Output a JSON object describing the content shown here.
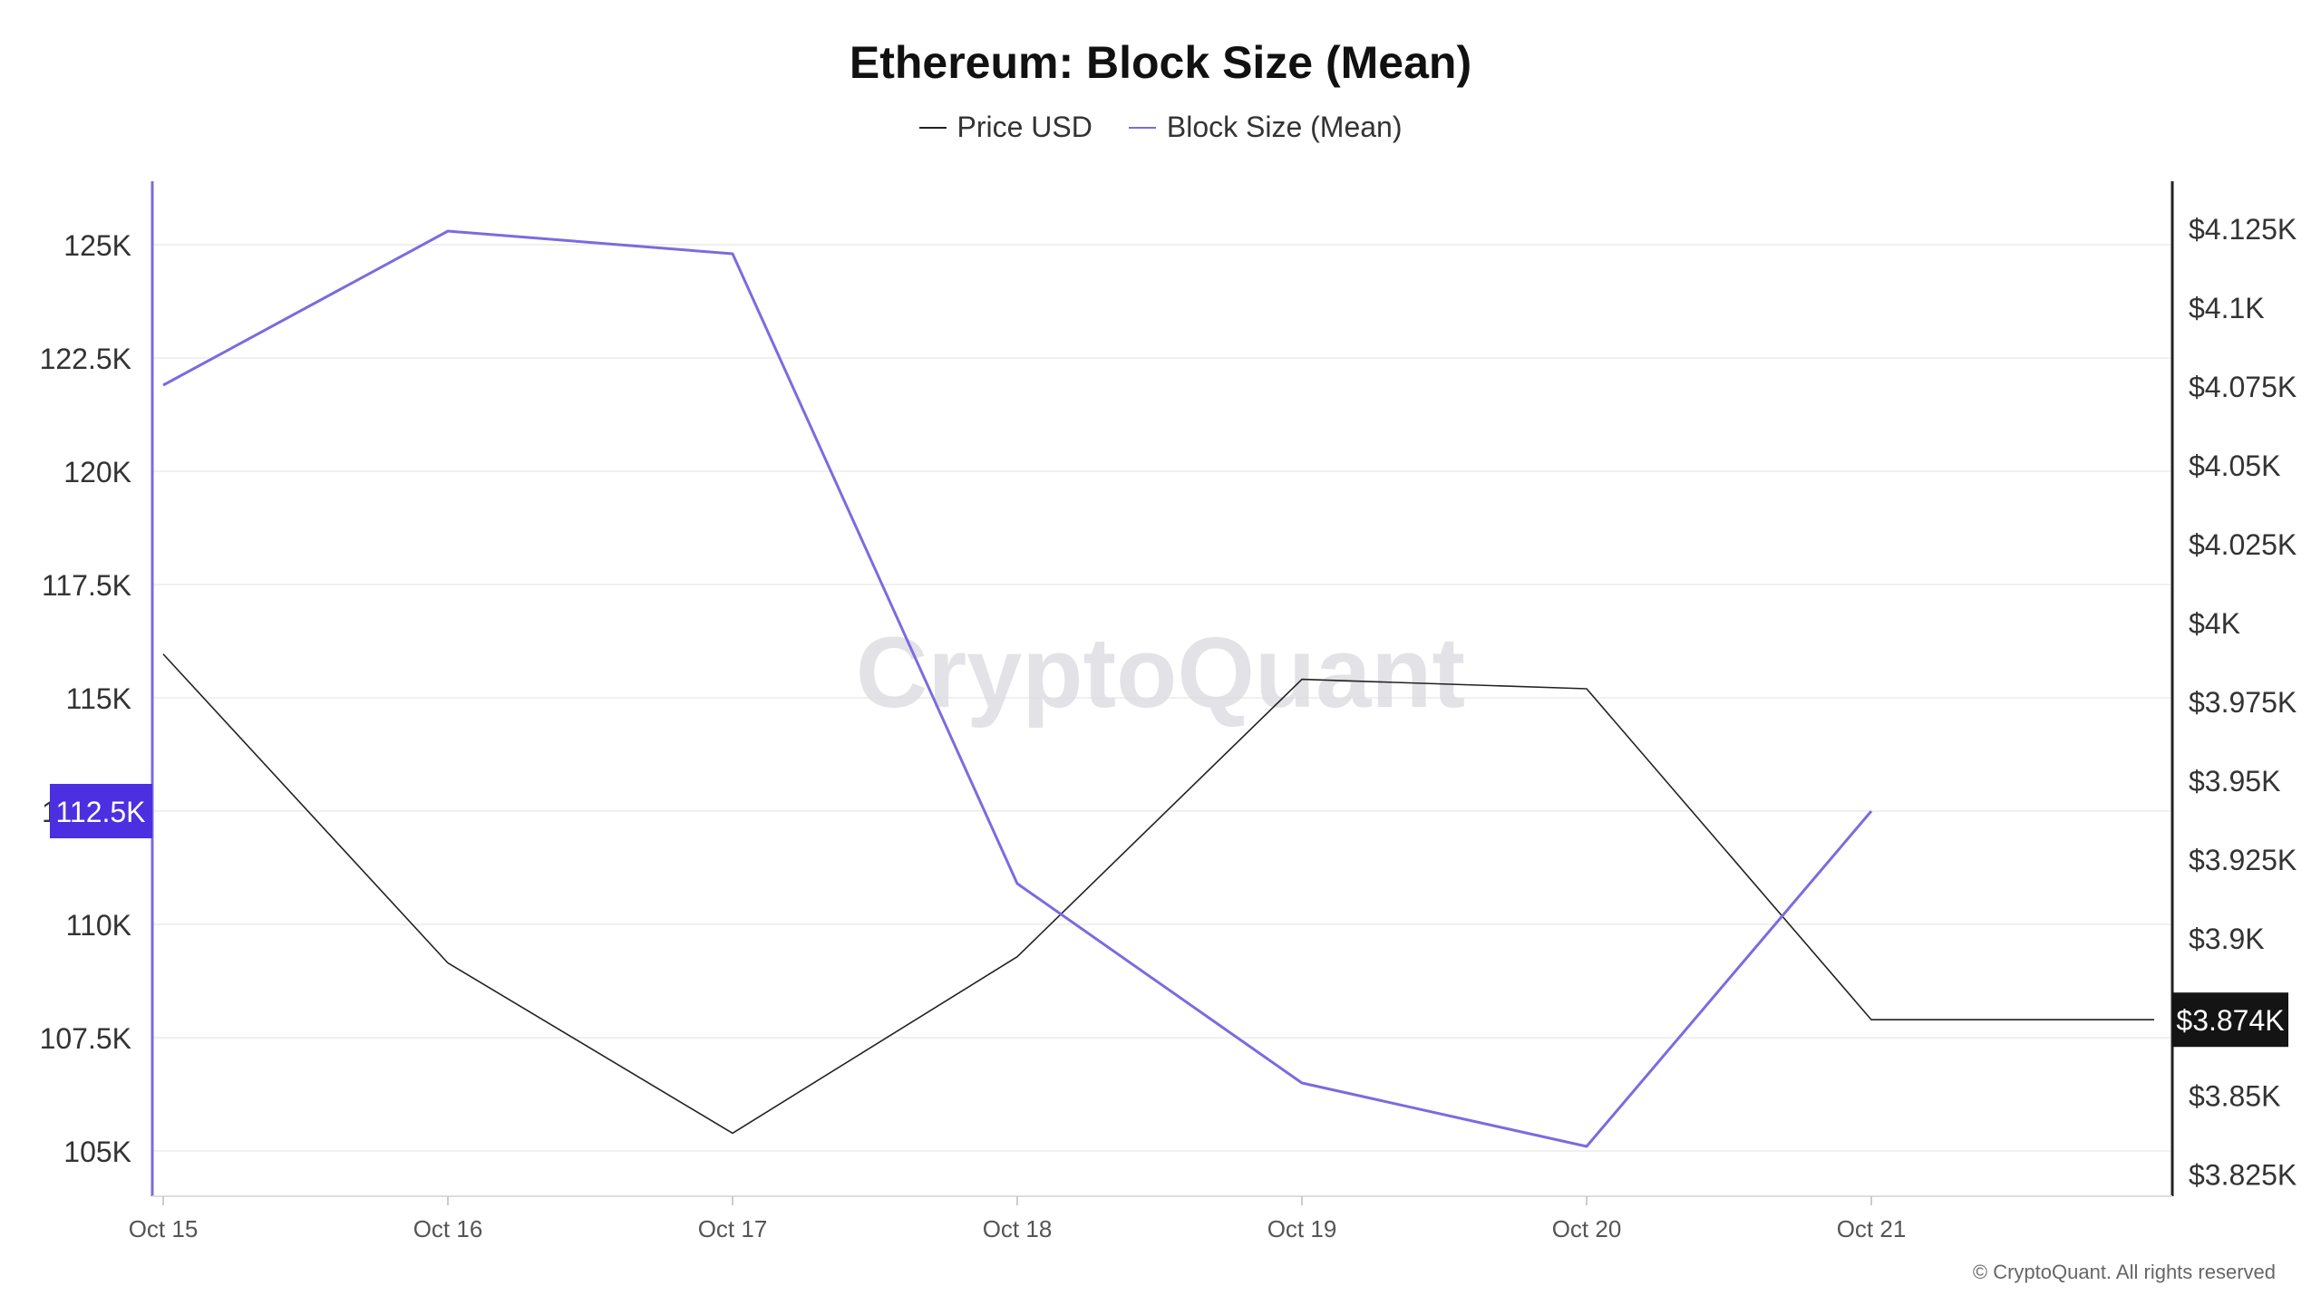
{
  "chart_data": {
    "type": "line",
    "title": "Ethereum: Block Size (Mean)",
    "categories": [
      "Oct 15",
      "Oct 16",
      "Oct 17",
      "Oct 18",
      "Oct 19",
      "Oct 20",
      "Oct 21"
    ],
    "legend": {
      "placement": "top-center"
    },
    "grid": true,
    "series": [
      {
        "name": "Price USD",
        "axis": "right",
        "color": "#222222",
        "values": [
          3990,
          3892,
          3838,
          3894,
          3982,
          3979,
          3874
        ],
        "extend_to_edge": true
      },
      {
        "name": "Block Size (Mean)",
        "axis": "left",
        "color": "#7B6BE0",
        "values": [
          121900,
          125300,
          124800,
          110900,
          106500,
          105100,
          112500
        ]
      }
    ],
    "y_left": {
      "ticks": [
        105000,
        107500,
        110000,
        112500,
        115000,
        117500,
        120000,
        122500,
        125000
      ],
      "tick_labels": [
        "105K",
        "107.5K",
        "110K",
        "112.5K",
        "115K",
        "117.5K",
        "120K",
        "122.5K",
        "125K"
      ],
      "ylim": [
        104000,
        126400
      ]
    },
    "y_right": {
      "ticks": [
        3825,
        3850,
        3875,
        3900,
        3925,
        3950,
        3975,
        4000,
        4025,
        4050,
        4075,
        4100,
        4125
      ],
      "tick_labels": [
        "$3.825K",
        "$3.85K",
        "",
        "$3.9K",
        "$3.925K",
        "$3.95K",
        "$3.975K",
        "$4K",
        "$4.025K",
        "$4.05K",
        "$4.075K",
        "$4.1K",
        "$4.125K"
      ],
      "ylim": [
        3818,
        4140
      ]
    },
    "badges": {
      "left": {
        "value": 112500,
        "label": "112.5K",
        "color": "#4B2FE0"
      },
      "right": {
        "value": 3874,
        "label": "$3.874K",
        "color": "#141414"
      }
    },
    "watermark": "CryptoQuant"
  },
  "footer": {
    "copyright": "© CryptoQuant. All rights reserved"
  }
}
